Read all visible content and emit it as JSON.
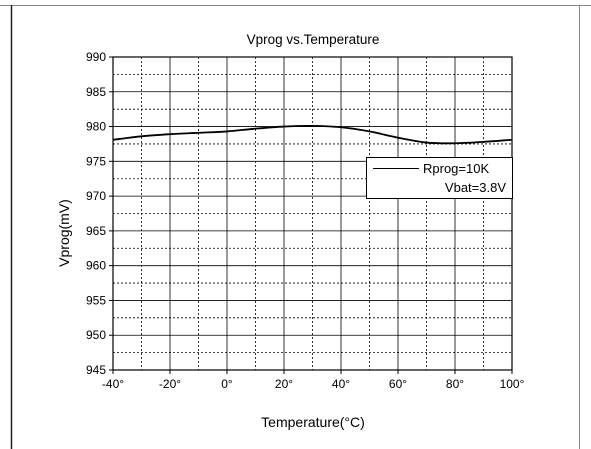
{
  "chart_data": {
    "type": "line",
    "title": "Vprog vs.Temperature",
    "xlabel": "Temperature(°C)",
    "ylabel": "Vprog(mV)",
    "xlim": [
      -40,
      100
    ],
    "ylim": [
      945,
      990
    ],
    "x_ticks": [
      -40,
      -20,
      0,
      20,
      40,
      60,
      80,
      100
    ],
    "x_tick_labels": [
      "-40°",
      "-20°",
      "0°",
      "20°",
      "40°",
      "60°",
      "80°",
      "100°"
    ],
    "y_ticks": [
      945,
      950,
      955,
      960,
      965,
      970,
      975,
      980,
      985,
      990
    ],
    "y_tick_labels": [
      "945",
      "950",
      "955",
      "960",
      "965",
      "970",
      "975",
      "980",
      "985",
      "990"
    ],
    "grid": true,
    "legend_position": "right",
    "series": [
      {
        "name": "Rprog=10K",
        "x": [
          -40,
          -30,
          -20,
          -10,
          0,
          10,
          20,
          30,
          40,
          50,
          60,
          70,
          80,
          90,
          100
        ],
        "y": [
          978.1,
          978.6,
          978.9,
          979.1,
          979.3,
          979.7,
          980.0,
          980.1,
          979.9,
          979.3,
          978.4,
          977.7,
          977.6,
          977.8,
          978.1
        ],
        "color": "#000000"
      }
    ],
    "legend_note": "Vbat=3.8V"
  }
}
